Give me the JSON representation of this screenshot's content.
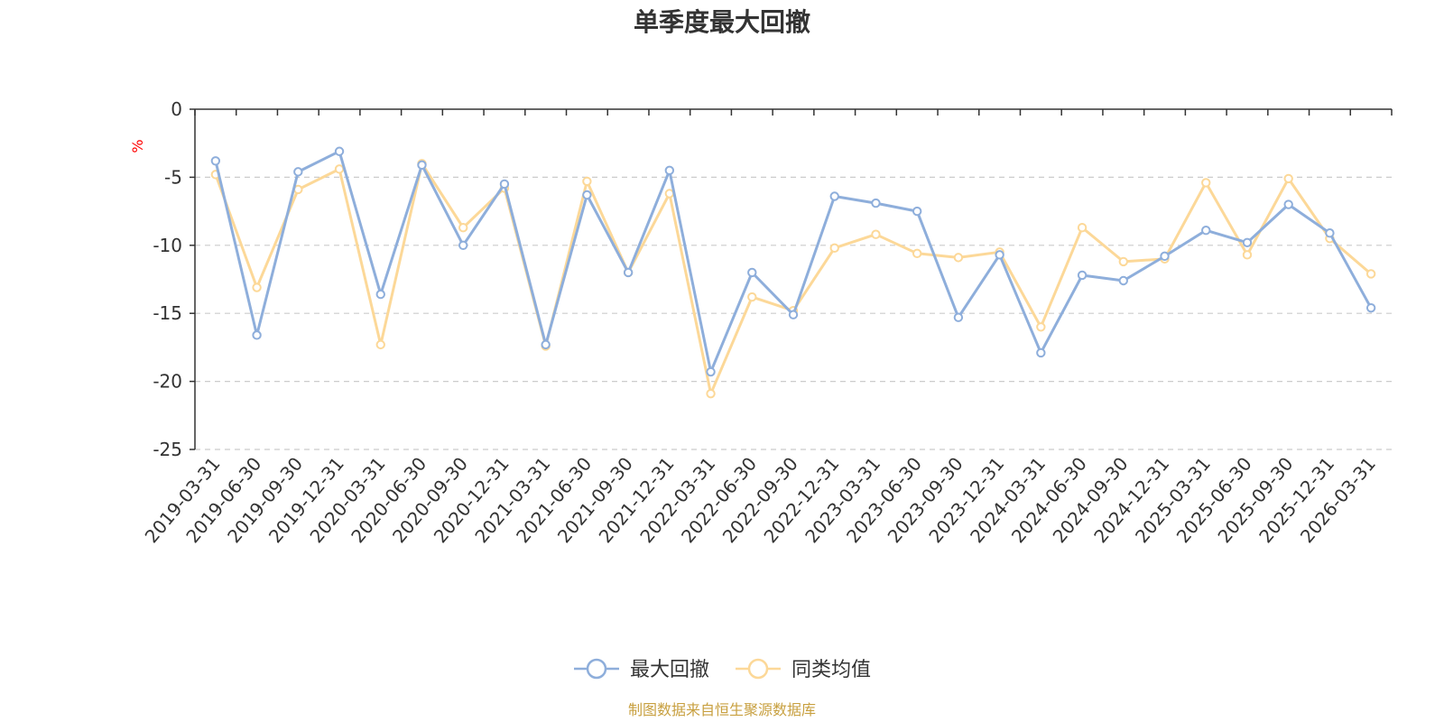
{
  "chart_data": {
    "type": "line",
    "title": "单季度最大回撤",
    "ylabel": "%",
    "ylim": [
      -25,
      0
    ],
    "yticks": [
      0,
      -5,
      -10,
      -15,
      -20,
      -25
    ],
    "grid": true,
    "legend_position": "bottom",
    "x": [
      "2019-03-31",
      "2019-06-30",
      "2019-09-30",
      "2019-12-31",
      "2020-03-31",
      "2020-06-30",
      "2020-09-30",
      "2020-12-31",
      "2021-03-31",
      "2021-06-30",
      "2021-09-30",
      "2021-12-31",
      "2022-03-31",
      "2022-06-30",
      "2022-09-30",
      "2022-12-31",
      "2023-03-31",
      "2023-06-30",
      "2023-09-30",
      "2023-12-31",
      "2024-03-31",
      "2024-06-30",
      "2024-09-30",
      "2024-12-31",
      "2025-03-31",
      "2025-06-30",
      "2025-09-30",
      "2025-12-31",
      "2026-03-31"
    ],
    "series": [
      {
        "name": "最大回撤",
        "color": "#8eaedb",
        "values": [
          -3.8,
          -16.6,
          -4.6,
          -3.1,
          -13.6,
          -4.1,
          -10.0,
          -5.5,
          -17.3,
          -6.3,
          -12.0,
          -4.5,
          -19.3,
          -12.0,
          -15.1,
          -6.4,
          -6.9,
          -7.5,
          -15.3,
          -10.7,
          -17.9,
          -12.2,
          -12.6,
          -10.8,
          -8.9,
          -9.8,
          -7.0,
          -9.1,
          -14.6
        ]
      },
      {
        "name": "同类均值",
        "color": "#fcd898",
        "values": [
          -4.8,
          -13.1,
          -5.9,
          -4.4,
          -17.3,
          -4.0,
          -8.7,
          -5.8,
          -17.4,
          -5.3,
          -12.0,
          -6.2,
          -20.9,
          -13.8,
          -14.8,
          -10.2,
          -9.2,
          -10.6,
          -10.9,
          -10.5,
          -16.0,
          -8.7,
          -11.2,
          -11.0,
          -5.4,
          -10.7,
          -5.1,
          -9.5,
          -12.1
        ]
      }
    ]
  },
  "footer": {
    "source": "制图数据来自恒生聚源数据库"
  }
}
